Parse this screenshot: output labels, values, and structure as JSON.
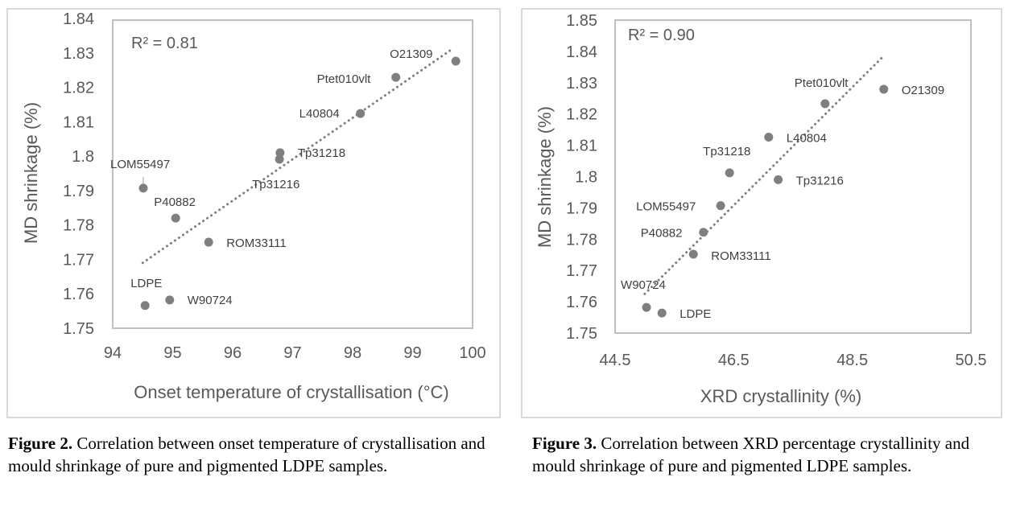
{
  "chart_data": [
    {
      "id": "figure-2",
      "type": "scatter",
      "title": "",
      "xlabel": "Onset temperature of crystallisation (°C)",
      "ylabel": "MD shrinkage (%)",
      "xlim": [
        94,
        100
      ],
      "ylim": [
        1.75,
        1.84
      ],
      "xticks": [
        "94",
        "95",
        "96",
        "97",
        "98",
        "99",
        "100"
      ],
      "yticks": [
        "1.75",
        "1.76",
        "1.77",
        "1.78",
        "1.79",
        "1.8",
        "1.81",
        "1.82",
        "1.83",
        "1.84"
      ],
      "grid": false,
      "annotation": "R² = 0.81",
      "trendline": {
        "style": "dotted",
        "x": [
          94.5,
          99.65
        ],
        "y": [
          1.769,
          1.831
        ]
      },
      "points": [
        {
          "label": "O21309",
          "x": 99.72,
          "y": 1.8276
        },
        {
          "label": "Ptet010vlt",
          "x": 98.72,
          "y": 1.8229
        },
        {
          "label": "L40804",
          "x": 98.13,
          "y": 1.8124
        },
        {
          "label": "Tp31218",
          "x": 96.79,
          "y": 1.801
        },
        {
          "label": "Tp31216",
          "x": 96.78,
          "y": 1.7991
        },
        {
          "label": "LOM55497",
          "x": 94.51,
          "y": 1.7907
        },
        {
          "label": "P40882",
          "x": 95.05,
          "y": 1.782
        },
        {
          "label": "ROM33111",
          "x": 95.6,
          "y": 1.775
        },
        {
          "label": "W90724",
          "x": 94.95,
          "y": 1.7582
        },
        {
          "label": "LDPE",
          "x": 94.54,
          "y": 1.7566
        }
      ],
      "marker_color": "#7f7f7f"
    },
    {
      "id": "figure-3",
      "type": "scatter",
      "title": "",
      "xlabel": "XRD crystallinity (%)",
      "ylabel": "MD shrinkage (%)",
      "xlim": [
        44.5,
        50.5
      ],
      "ylim": [
        1.75,
        1.85
      ],
      "xticks": [
        "44.5",
        "46.5",
        "48.5",
        "50.5"
      ],
      "xtick_values": [
        44.5,
        46.5,
        48.5,
        50.5
      ],
      "yticks": [
        "1.75",
        "1.76",
        "1.77",
        "1.78",
        "1.79",
        "1.8",
        "1.81",
        "1.82",
        "1.83",
        "1.84",
        "1.85"
      ],
      "grid": false,
      "annotation": "R² = 0.90",
      "trendline": {
        "style": "dotted",
        "x": [
          45.0,
          49.0
        ],
        "y": [
          1.7625,
          1.838
        ]
      },
      "points": [
        {
          "label": "O21309",
          "x": 49.03,
          "y": 1.8279
        },
        {
          "label": "Ptet010vlt",
          "x": 48.04,
          "y": 1.8233
        },
        {
          "label": "L40804",
          "x": 47.09,
          "y": 1.8126
        },
        {
          "label": "Tp31218",
          "x": 46.43,
          "y": 1.8012
        },
        {
          "label": "Tp31216",
          "x": 47.25,
          "y": 1.799
        },
        {
          "label": "LOM55497",
          "x": 46.28,
          "y": 1.7907
        },
        {
          "label": "P40882",
          "x": 45.99,
          "y": 1.7822
        },
        {
          "label": "ROM33111",
          "x": 45.82,
          "y": 1.7752
        },
        {
          "label": "W90724",
          "x": 45.03,
          "y": 1.7582
        },
        {
          "label": "LDPE",
          "x": 45.29,
          "y": 1.7564
        }
      ],
      "marker_color": "#7f7f7f"
    }
  ],
  "captions": {
    "left": {
      "label": "Figure 2.",
      "text": " Correlation between onset temperature of crystallisation and mould shrinkage of pure and pigmented LDPE samples."
    },
    "right": {
      "label": "Figure 3.",
      "text": " Correlation between XRD percentage crystallinity and mould shrinkage of pure and pigmented LDPE samples."
    }
  }
}
